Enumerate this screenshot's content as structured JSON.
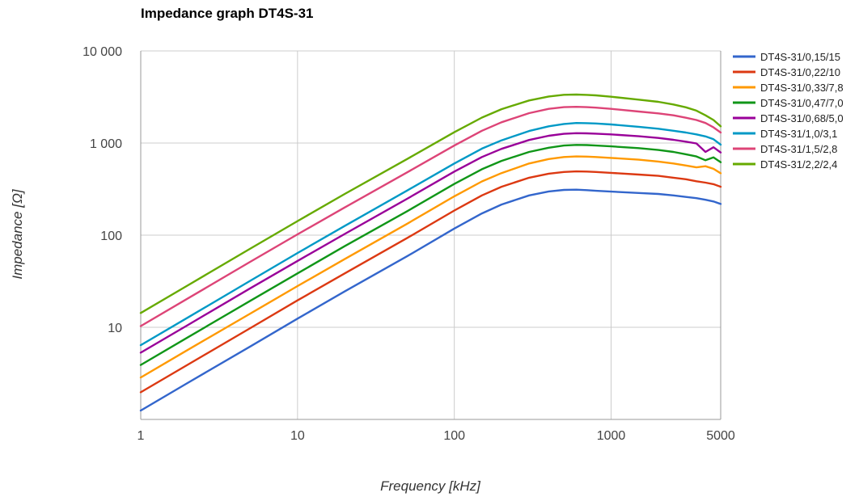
{
  "chart_data": {
    "type": "line",
    "title": "Impedance graph DT4S-31",
    "xlabel": "Frequency [kHz]",
    "ylabel": "Impedance [Ω]",
    "x_scale": "log",
    "y_scale": "log",
    "xlim": [
      1,
      5000
    ],
    "ylim": [
      1,
      10000
    ],
    "x_ticks": [
      1,
      10,
      100,
      1000,
      5000
    ],
    "x_tick_labels": [
      "1",
      "10",
      "100",
      "1000",
      "5000"
    ],
    "y_ticks": [
      10,
      100,
      1000,
      10000
    ],
    "y_tick_labels": [
      "10",
      "100",
      "1 000",
      "10 000"
    ],
    "grid": true,
    "legend_position": "right",
    "x": [
      1,
      2,
      5,
      10,
      20,
      50,
      100,
      150,
      200,
      300,
      400,
      500,
      600,
      700,
      800,
      1000,
      1500,
      2000,
      2500,
      3000,
      3500,
      4000,
      4500,
      5000
    ],
    "series": [
      {
        "name": "DT4S-31/0,15/15",
        "color": "#3366cc",
        "values": [
          1.25,
          2.5,
          6.2,
          12.4,
          24.5,
          59,
          118,
          172,
          215,
          270,
          298,
          310,
          312,
          308,
          303,
          297,
          287,
          280,
          270,
          260,
          252,
          242,
          232,
          218
        ]
      },
      {
        "name": "DT4S-31/0,22/10",
        "color": "#dc3912",
        "values": [
          1.97,
          3.94,
          9.8,
          19.6,
          38.5,
          93,
          185,
          270,
          335,
          420,
          465,
          485,
          492,
          490,
          485,
          475,
          455,
          440,
          420,
          405,
          385,
          372,
          358,
          335
        ]
      },
      {
        "name": "DT4S-31/0,33/7,8",
        "color": "#ff9900",
        "values": [
          2.85,
          5.7,
          14.1,
          28,
          55,
          133,
          264,
          383,
          472,
          600,
          670,
          705,
          715,
          712,
          705,
          690,
          660,
          630,
          600,
          570,
          545,
          560,
          525,
          470
        ]
      },
      {
        "name": "DT4S-31/0,47/7,0",
        "color": "#109618",
        "values": [
          3.9,
          7.8,
          19.4,
          38.5,
          76,
          182,
          360,
          520,
          640,
          800,
          890,
          940,
          955,
          950,
          940,
          920,
          880,
          840,
          800,
          755,
          715,
          650,
          700,
          620
        ]
      },
      {
        "name": "DT4S-31/0,68/5,0",
        "color": "#990099",
        "values": [
          5.3,
          10.6,
          26.5,
          52.5,
          103,
          248,
          490,
          705,
          865,
          1080,
          1200,
          1260,
          1280,
          1275,
          1265,
          1240,
          1185,
          1135,
          1085,
          1035,
          990,
          800,
          900,
          790
        ]
      },
      {
        "name": "DT4S-31/1,0/3,1",
        "color": "#0099c6",
        "values": [
          6.4,
          12.8,
          32,
          64,
          126,
          305,
          600,
          870,
          1070,
          1350,
          1520,
          1610,
          1650,
          1645,
          1630,
          1590,
          1500,
          1430,
          1360,
          1300,
          1240,
          1180,
          1100,
          960
        ]
      },
      {
        "name": "DT4S-31/1,5/2,8",
        "color": "#dd4477",
        "values": [
          10.3,
          20.6,
          51.5,
          102,
          200,
          480,
          940,
          1360,
          1680,
          2110,
          2350,
          2450,
          2470,
          2450,
          2420,
          2350,
          2200,
          2100,
          2000,
          1880,
          1780,
          1650,
          1480,
          1300
        ]
      },
      {
        "name": "DT4S-31/2,2/2,4",
        "color": "#66aa00",
        "values": [
          14.3,
          28.6,
          71.5,
          142,
          280,
          670,
          1310,
          1890,
          2330,
          2900,
          3200,
          3340,
          3360,
          3330,
          3290,
          3180,
          2960,
          2800,
          2620,
          2440,
          2250,
          2000,
          1780,
          1520
        ]
      }
    ]
  }
}
